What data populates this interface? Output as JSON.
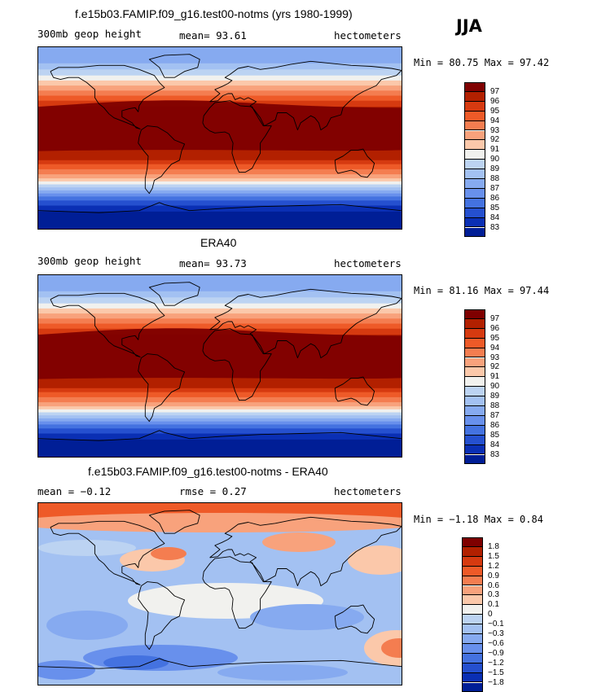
{
  "season": "JJA",
  "panels": [
    {
      "title": "f.e15b03.FAMIP.f09_g16.test00-notms (yrs 1980-1999)",
      "left": "300mb geop height",
      "center": "mean=  93.61",
      "right": "hectometers",
      "minmax": "Min =  80.75 Max =  97.42",
      "levels": [
        "97",
        "96",
        "95",
        "94",
        "93",
        "92",
        "91",
        "90",
        "89",
        "88",
        "87",
        "86",
        "85",
        "84",
        "83"
      ],
      "colors": [
        "#7f0000",
        "#b22000",
        "#d63a10",
        "#ee5a28",
        "#f47d50",
        "#f8a27c",
        "#fbc8aa",
        "#f1f1ee",
        "#bcd3f2",
        "#a3c1f2",
        "#86aaf0",
        "#6890ec",
        "#4472e0",
        "#2550cf",
        "#0a2fb4",
        "#001e96"
      ]
    },
    {
      "title": "ERA40",
      "left": "300mb geop height",
      "center": "mean=  93.73",
      "right": "hectometers",
      "minmax": "Min =  81.16 Max =  97.44",
      "levels": [
        "97",
        "96",
        "95",
        "94",
        "93",
        "92",
        "91",
        "90",
        "89",
        "88",
        "87",
        "86",
        "85",
        "84",
        "83"
      ],
      "colors": [
        "#7f0000",
        "#b22000",
        "#d63a10",
        "#ee5a28",
        "#f47d50",
        "#f8a27c",
        "#fbc8aa",
        "#f1f1ee",
        "#bcd3f2",
        "#a3c1f2",
        "#86aaf0",
        "#6890ec",
        "#4472e0",
        "#2550cf",
        "#0a2fb4",
        "#001e96"
      ]
    },
    {
      "title": "f.e15b03.FAMIP.f09_g16.test00-notms - ERA40",
      "left": "mean =  −0.12",
      "center": "rmse =   0.27",
      "right": "hectometers",
      "minmax": "Min =  −1.18 Max =   0.84",
      "levels": [
        "1.8",
        "1.5",
        "1.2",
        "0.9",
        "0.6",
        "0.3",
        "0.1",
        "0",
        "−0.1",
        "−0.3",
        "−0.6",
        "−0.9",
        "−1.2",
        "−1.5",
        "−1.8"
      ],
      "colors": [
        "#7f0000",
        "#b22000",
        "#d63a10",
        "#ee5a28",
        "#f47d50",
        "#f8a27c",
        "#fbc8aa",
        "#f1f1ee",
        "#bcd3f2",
        "#a3c1f2",
        "#86aaf0",
        "#6890ec",
        "#4472e0",
        "#2550cf",
        "#0a2fb4",
        "#001e96"
      ]
    }
  ]
}
